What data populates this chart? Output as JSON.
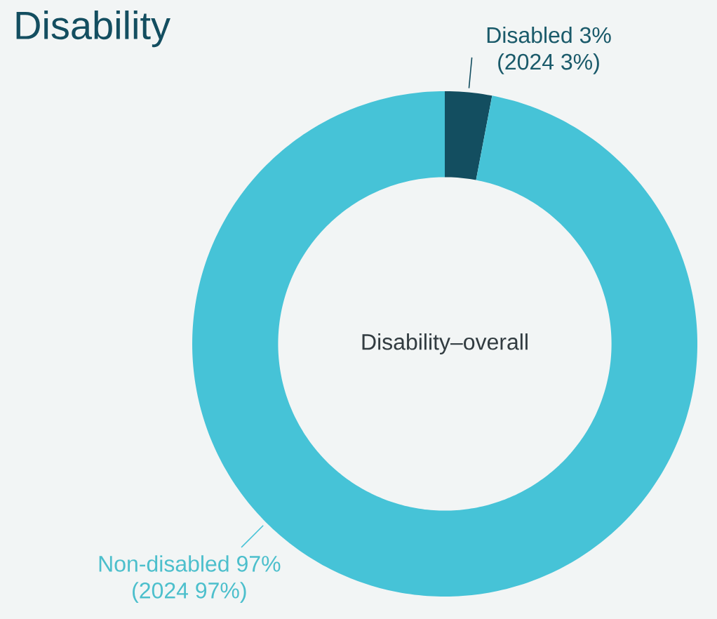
{
  "chart_data": {
    "type": "donut",
    "title": "Disability",
    "categories": [
      "Disabled",
      "Non-disabled"
    ],
    "values": [
      3,
      97
    ],
    "colors": [
      "#134e60",
      "#46c3d7"
    ],
    "value_labels": [
      "3%",
      "97%"
    ],
    "annotations": [
      "(2024 3%)",
      "(2024 97%)",
      "Disability–overall"
    ]
  }
}
